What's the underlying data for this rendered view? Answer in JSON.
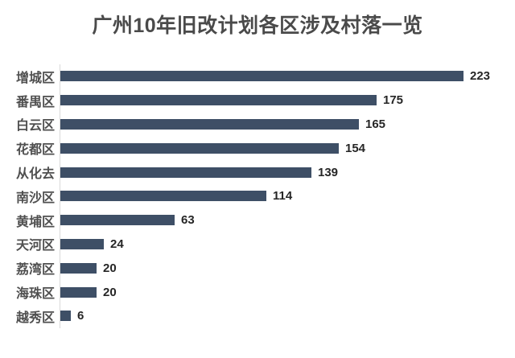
{
  "page": {
    "background": "#ffffff"
  },
  "chart_data": {
    "type": "bar",
    "orientation": "horizontal",
    "title": "广州10年旧改计划各区涉及村落一览",
    "categories": [
      "增城区",
      "番禺区",
      "白云区",
      "花都区",
      "从化去",
      "南沙区",
      "黄埔区",
      "天河区",
      "荔湾区",
      "海珠区",
      "越秀区"
    ],
    "values": [
      223,
      175,
      165,
      154,
      139,
      114,
      63,
      24,
      20,
      20,
      6
    ],
    "xlabel": "",
    "ylabel": "",
    "xlim": [
      0,
      240
    ],
    "grid": false,
    "legend": false,
    "value_labels_shown": true,
    "colors": {
      "title": "#4a4a4a",
      "bar": "#3e4f66",
      "axis_line": "#d9d9d9",
      "category_label": "#4f4f4f",
      "value_label": "#262626",
      "background": "#ffffff"
    }
  }
}
